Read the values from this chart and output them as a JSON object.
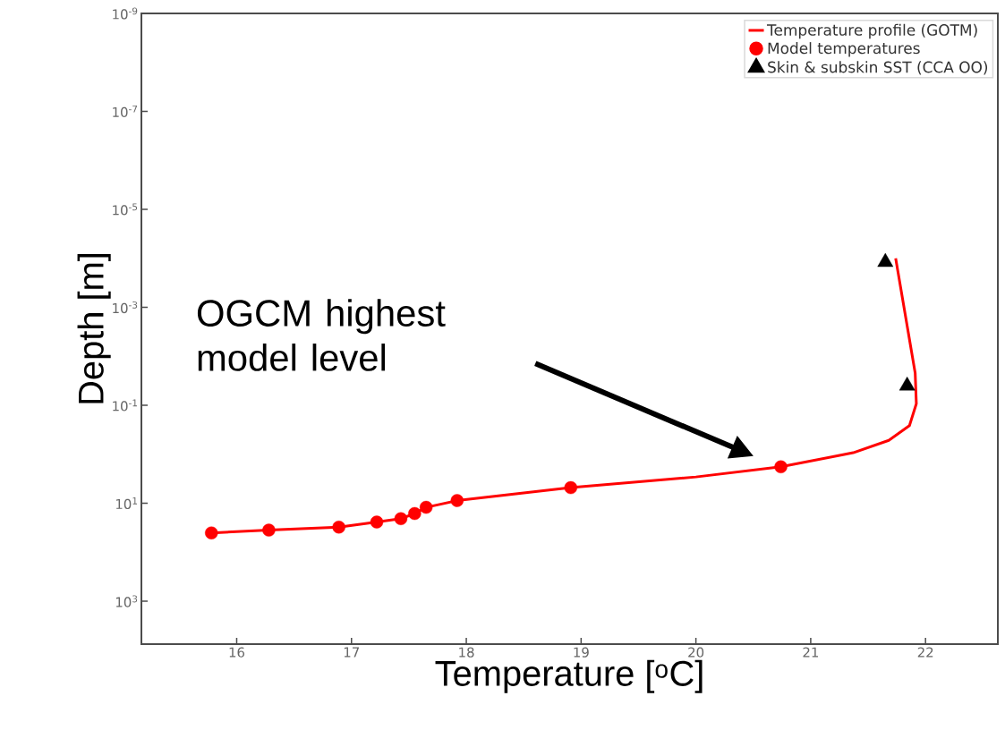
{
  "chart_data": {
    "type": "line",
    "xlabel": "Temperature [$^{o}$C]",
    "ylabel": "Depth [m]",
    "log": "y",
    "xlim": [
      15.17,
      22.63
    ],
    "ylim": [
      7500,
      1e-09
    ],
    "xticks": [
      16,
      17,
      18,
      19,
      20,
      21,
      22
    ],
    "yticks": [
      {
        "value": 1e-09,
        "label": "10$^{-9}$"
      },
      {
        "value": 1e-07,
        "label": "10$^{-7}$"
      },
      {
        "value": 1e-05,
        "label": "10$^{-5}$"
      },
      {
        "value": 0.001,
        "label": "10$^{-3}$"
      },
      {
        "value": 0.1,
        "label": "10$^{-1}$"
      },
      {
        "value": 10,
        "label": "10$^{1}$"
      },
      {
        "value": 1000,
        "label": "10$^{3}$"
      }
    ],
    "legend": "top right",
    "series": [
      {
        "name": "Temperature profile (GOTM)",
        "color": "#ff0000",
        "marker": "none",
        "line_style": "solid",
        "x": [
          15.78,
          16.28,
          16.89,
          17.22,
          17.43,
          17.55,
          17.65,
          17.92,
          18.91,
          20.0,
          20.74,
          21.37,
          21.68,
          21.86,
          21.92,
          21.91,
          21.74
        ],
        "values": [
          40.3,
          35.4,
          30.7,
          24.2,
          20.6,
          16.2,
          12.1,
          8.8,
          4.8,
          2.9,
          1.8,
          0.93,
          0.52,
          0.26,
          0.093,
          0.022,
          0.0001
        ]
      },
      {
        "name": "Model temperatures",
        "type": "scatter",
        "color": "#ff0000",
        "marker": "circle",
        "x": [
          15.78,
          16.28,
          16.89,
          17.22,
          17.43,
          17.55,
          17.65,
          17.92,
          18.91,
          20.74
        ],
        "values": [
          40.3,
          35.4,
          30.7,
          24.2,
          20.6,
          16.2,
          12.1,
          8.8,
          4.8,
          1.8
        ]
      },
      {
        "name": "Skin & subskin SST (CCA OO)",
        "type": "scatter",
        "color": "#000000",
        "marker": "triangle",
        "x": [
          21.65,
          21.84
        ],
        "values": [
          0.00012,
          0.04
        ]
      }
    ],
    "annotations": [
      "OGCM highest model level"
    ]
  }
}
